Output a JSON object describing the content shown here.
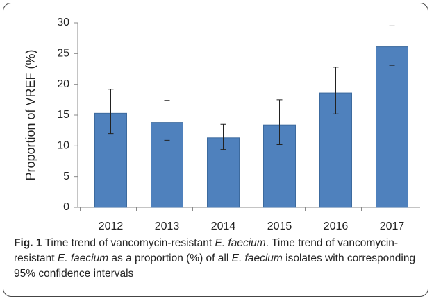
{
  "chart_data": {
    "type": "bar",
    "y_label": "Proportion of VREF (%)",
    "categories": [
      "2012",
      "2013",
      "2014",
      "2015",
      "2016",
      "2017"
    ],
    "values": [
      15.3,
      13.8,
      11.3,
      13.4,
      18.6,
      26.1
    ],
    "ci_lower": [
      12.0,
      10.9,
      9.4,
      10.2,
      15.2,
      23.1
    ],
    "ci_upper": [
      19.2,
      17.4,
      13.5,
      17.5,
      22.8,
      29.5
    ],
    "color": "#4f81bd",
    "ylim": [
      0,
      30
    ],
    "yticks": [
      0,
      5,
      10,
      15,
      20,
      25,
      30
    ],
    "grid": false
  },
  "caption": [
    {
      "text": "Fig. 1",
      "style": "bold"
    },
    {
      "text": " Time trend of vancomycin-resistant ",
      "style": "normal"
    },
    {
      "text": "E. faecium",
      "style": "italic"
    },
    {
      "text": ". Time trend of vancomycin-resistant ",
      "style": "normal"
    },
    {
      "text": "E. faecium",
      "style": "italic"
    },
    {
      "text": " as a proportion (%) of all ",
      "style": "normal"
    },
    {
      "text": "E. faecium",
      "style": "italic"
    },
    {
      "text": " isolates with corresponding 95% confidence intervals",
      "style": "normal"
    }
  ]
}
